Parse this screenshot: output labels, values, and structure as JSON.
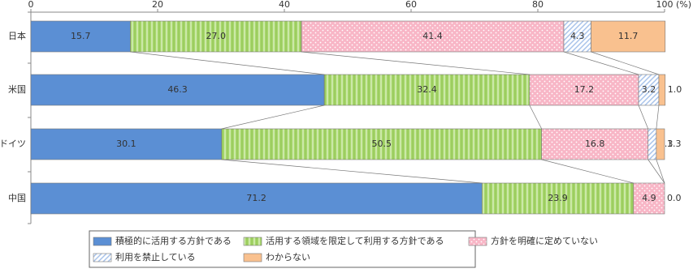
{
  "chart_data": {
    "type": "stacked-barh",
    "categories": [
      "日本",
      "米国",
      "ドイツ",
      "中国"
    ],
    "xlabel": "(%)",
    "xlim": [
      0,
      100
    ],
    "xticks": [
      0,
      20,
      40,
      60,
      80,
      100
    ],
    "legend": "bottom",
    "series": [
      {
        "name": "積極的に活用する方針である",
        "color": "#5b8fd4",
        "values": [
          15.7,
          46.3,
          30.1,
          71.2
        ],
        "value_labels": [
          "15.7",
          "46.3",
          "30.1",
          "71.2"
        ]
      },
      {
        "name": "活用する領域を限定して利用する方針である",
        "color": "#a9d86e",
        "values": [
          27.0,
          32.4,
          50.5,
          23.9
        ],
        "value_labels": [
          "27.0",
          "32.4",
          "50.5",
          "23.9"
        ]
      },
      {
        "name": "方針を明確に定めていない",
        "color": "#f8b6c6",
        "values": [
          41.4,
          17.2,
          16.8,
          4.9
        ],
        "value_labels": [
          "41.4",
          "17.2",
          "16.8",
          "4.9"
        ]
      },
      {
        "name": "利用を禁止している",
        "color": "#a8c3ea",
        "values": [
          4.3,
          3.2,
          1.3,
          0.0
        ],
        "value_labels": [
          "4.3",
          "3.2",
          "1.3",
          null
        ]
      },
      {
        "name": "わからない",
        "color": "#f9c18f",
        "values": [
          11.7,
          1.0,
          1.3,
          0.0
        ],
        "value_labels": [
          "11.7",
          "1.0",
          "1.3",
          "0.0"
        ]
      }
    ]
  }
}
